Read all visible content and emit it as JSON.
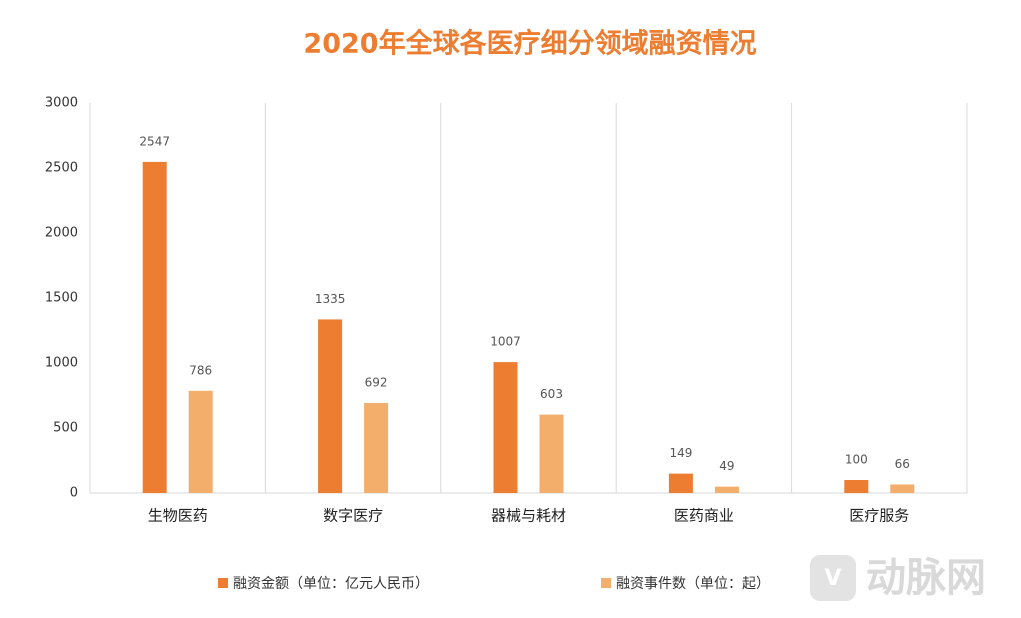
{
  "chart_data": {
    "type": "bar",
    "title": "2020年全球各医疗细分领域融资情况",
    "categories": [
      "生物医药",
      "数字医疗",
      "器械与耗材",
      "医药商业",
      "医疗服务"
    ],
    "series": [
      {
        "name": "融资金额（单位：亿元人民币）",
        "color": "#ED7D31",
        "values": [
          2547,
          1335,
          1007,
          149,
          100
        ]
      },
      {
        "name": "融资事件数（单位：起）",
        "color": "#F4AE6C",
        "values": [
          786,
          692,
          603,
          49,
          66
        ]
      }
    ],
    "ylim": [
      0,
      3000
    ],
    "yticks": [
      0,
      500,
      1000,
      1500,
      2000,
      2500,
      3000
    ],
    "watermark": "动脉网"
  }
}
